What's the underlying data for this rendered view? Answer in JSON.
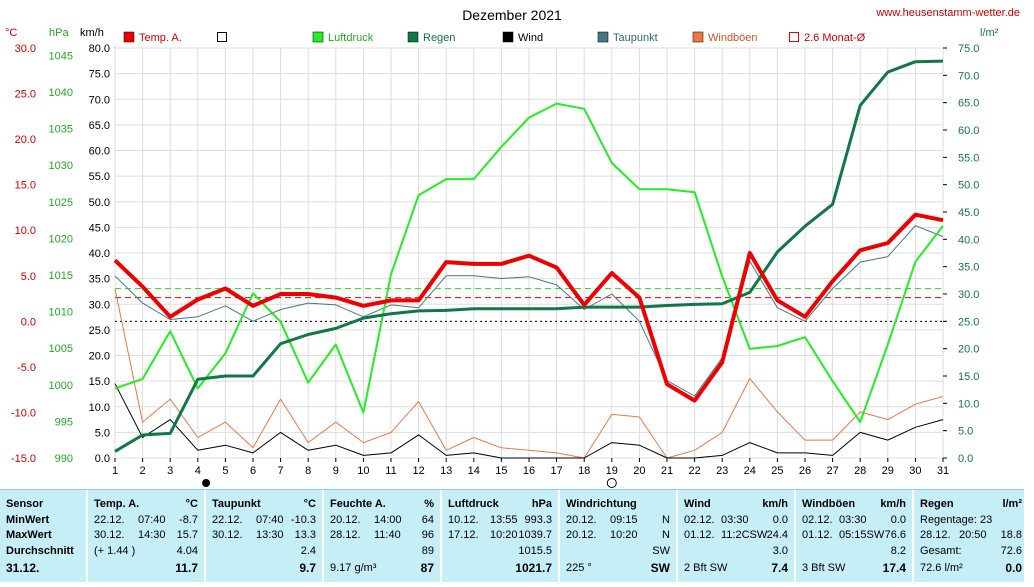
{
  "title": "Dezember 2021",
  "website": "www.heusenstamm-wetter.de",
  "axes": {
    "temp_unit": "°C",
    "pressure_unit": "hPa",
    "wind_unit": "km/h",
    "rain_unit": "l/m²",
    "temp_ticks": [
      "30.0",
      "25.0",
      "20.0",
      "15.0",
      "10.0",
      "5.0",
      "0.0",
      "-5.0",
      "-10.0",
      "-15.0"
    ],
    "pressure_ticks": [
      "1045",
      "1040",
      "1035",
      "1030",
      "1025",
      "1020",
      "1015",
      "1010",
      "1005",
      "1000",
      "995",
      "990"
    ],
    "wind_ticks": [
      "80.0",
      "75.0",
      "70.0",
      "65.0",
      "60.0",
      "55.0",
      "50.0",
      "45.0",
      "40.0",
      "35.0",
      "30.0",
      "25.0",
      "20.0",
      "15.0",
      "10.0",
      "5.0",
      "0.0"
    ],
    "rain_ticks": [
      "75.0",
      "70.0",
      "65.0",
      "60.0",
      "55.0",
      "50.0",
      "45.0",
      "40.0",
      "35.0",
      "30.0",
      "25.0",
      "20.0",
      "15.0",
      "10.0",
      "5.0",
      "0.0"
    ],
    "x_ticks": [
      "1",
      "2",
      "3",
      "4",
      "5",
      "6",
      "7",
      "8",
      "9",
      "10",
      "11",
      "12",
      "13",
      "14",
      "15",
      "16",
      "17",
      "18",
      "19",
      "20",
      "21",
      "22",
      "23",
      "24",
      "25",
      "26",
      "27",
      "28",
      "29",
      "30",
      "31"
    ]
  },
  "legend": [
    {
      "label": "Temp. A.",
      "color": "#ee0000",
      "style": "filled"
    },
    {
      "label": "",
      "color": "#ffffff",
      "style": "box"
    },
    {
      "label": "Luftdruck",
      "color": "#22ee22",
      "style": "filled"
    },
    {
      "label": "Regen",
      "color": "#117744",
      "style": "filled"
    },
    {
      "label": "Wind",
      "color": "#000000",
      "style": "filled"
    },
    {
      "label": "Taupunkt",
      "color": "#447788",
      "style": "filled"
    },
    {
      "label": "Windböen",
      "color": "#ee7744",
      "style": "filled"
    },
    {
      "label": "2.6 Monat-Ø",
      "color": "#ee0000",
      "style": "box"
    }
  ],
  "colors": {
    "temp": "#ee0000",
    "pressure": "#22ee22",
    "rain": "#117744",
    "wind": "#000000",
    "dew": "#447788",
    "gust": "#ee7744",
    "avg": "#ee0000",
    "grid": "#dddddd"
  },
  "chart_data": {
    "type": "line",
    "x": [
      1,
      2,
      3,
      4,
      5,
      6,
      7,
      8,
      9,
      10,
      11,
      12,
      13,
      14,
      15,
      16,
      17,
      18,
      19,
      20,
      21,
      22,
      23,
      24,
      25,
      26,
      27,
      28,
      29,
      30,
      31
    ],
    "xlim": [
      1,
      31
    ],
    "temp_ylim": [
      -15,
      30
    ],
    "pressure_ylim": [
      990,
      1046
    ],
    "wind_ylim": [
      0,
      80
    ],
    "rain_ylim": [
      0,
      75
    ],
    "series": [
      {
        "name": "Temp. A.",
        "axis": "temp",
        "values": [
          6.7,
          3.8,
          0.5,
          2.4,
          3.6,
          1.7,
          3.0,
          3.0,
          2.6,
          1.7,
          2.3,
          2.3,
          6.5,
          6.3,
          6.3,
          7.2,
          5.9,
          1.8,
          5.3,
          2.6,
          -6.9,
          -8.7,
          -4.5,
          7.5,
          2.3,
          0.5,
          4.4,
          7.8,
          8.6,
          11.7,
          11.1
        ]
      },
      {
        "name": "Luftdruck",
        "axis": "pressure",
        "values": [
          999.5,
          1000.8,
          1007.3,
          999.5,
          1004.3,
          1012.5,
          1008.6,
          1000.3,
          1005.5,
          996.2,
          1015.1,
          1025.9,
          1028.1,
          1028.1,
          1032.5,
          1036.5,
          1038.4,
          1037.7,
          1030.3,
          1026.7,
          1026.7,
          1026.3,
          1014.8,
          1004.9,
          1005.3,
          1006.5,
          1000.5,
          994.9,
          1005.5,
          1016.8,
          1021.7
        ]
      },
      {
        "name": "Regen",
        "axis": "rain",
        "values": [
          1.2,
          4.2,
          4.5,
          14.4,
          15.0,
          15.0,
          20.9,
          22.6,
          23.7,
          25.6,
          26.4,
          26.9,
          27.0,
          27.3,
          27.3,
          27.3,
          27.3,
          27.6,
          27.6,
          27.6,
          27.9,
          28.1,
          28.2,
          30.3,
          37.7,
          42.4,
          46.4,
          64.5,
          70.6,
          72.5,
          72.6
        ]
      },
      {
        "name": "Taupunkt",
        "axis": "temp",
        "values": [
          5.0,
          2.0,
          0.2,
          0.5,
          1.7,
          0.0,
          1.3,
          2.0,
          1.8,
          0.5,
          1.8,
          1.5,
          5.0,
          5.0,
          4.7,
          4.9,
          4.0,
          1.3,
          3.0,
          0.0,
          -6.5,
          -8.2,
          -4.0,
          6.6,
          1.5,
          0.0,
          3.6,
          6.5,
          7.1,
          10.5,
          9.3
        ]
      },
      {
        "name": "Wind",
        "axis": "wind",
        "values": [
          14.5,
          4.0,
          7.5,
          1.5,
          2.5,
          1.0,
          5.0,
          1.5,
          2.5,
          0.5,
          1.0,
          4.5,
          0.5,
          1.0,
          0.0,
          0.0,
          0.0,
          0.0,
          3.0,
          2.5,
          0.0,
          0.0,
          0.5,
          3.0,
          1.0,
          1.0,
          0.5,
          5.0,
          3.5,
          6.0,
          7.5
        ]
      },
      {
        "name": "Windböen",
        "axis": "wind",
        "values": [
          33.0,
          7.0,
          11.5,
          4.0,
          7.0,
          2.0,
          11.5,
          3.0,
          7.0,
          3.0,
          5.0,
          11.0,
          1.5,
          4.0,
          2.0,
          1.5,
          1.0,
          0.0,
          8.5,
          8.0,
          0.0,
          1.5,
          5.0,
          15.5,
          9.0,
          3.5,
          3.5,
          9.0,
          7.5,
          10.5,
          12.0
        ]
      }
    ],
    "reference_lines": [
      {
        "label": "2.6 Monat-Ø",
        "axis": "temp",
        "value": 2.6,
        "color": "#ee0000",
        "style": "dashed"
      },
      {
        "label": "",
        "axis": "temp",
        "value": 3.6,
        "color": "#22ee22",
        "style": "dashed"
      },
      {
        "label": "",
        "axis": "temp",
        "value": 0.0,
        "color": "#000000",
        "style": "dotted"
      }
    ],
    "markers": [
      {
        "x": 4.3,
        "type": "filled-circle"
      },
      {
        "x": 19.0,
        "type": "open-circle"
      }
    ]
  },
  "stats": {
    "sensor": {
      "header": "Sensor",
      "rows": [
        "MinWert",
        "MaxWert",
        "Durchschnitt",
        "31.12."
      ]
    },
    "temp": {
      "header": "Temp. A.",
      "unit": "°C",
      "min_date": "22.12.",
      "min_time": "07:40",
      "min": "-8.7",
      "max_date": "30.12.",
      "max_time": "14:30",
      "max": "15.7",
      "avg_note": "(+ 1.44 )",
      "avg": "4.04",
      "today": "11.7"
    },
    "dew": {
      "header": "Taupunkt",
      "unit": "°C",
      "min_date": "22.12.",
      "min_time": "07:40",
      "min": "-10.3",
      "max_date": "30.12.",
      "max_time": "13:30",
      "max": "13.3",
      "avg": "2.4",
      "today": "9.7"
    },
    "hum": {
      "header": "Feuchte A.",
      "unit": "%",
      "min_date": "20.12.",
      "min_time": "14:00",
      "min": "64",
      "max_date": "28.12.",
      "max_time": "11:40",
      "max": "96",
      "avg": "89",
      "today_note": "9.17 g/m³",
      "today": "87"
    },
    "press": {
      "header": "Luftdruck",
      "unit": "hPa",
      "min_date": "10.12.",
      "min_time": "13:55",
      "min": "993.3",
      "max_date": "17.12.",
      "max_time": "10:20",
      "max": "1039.7",
      "avg": "1015.5",
      "today": "1021.7"
    },
    "dir": {
      "header": "Windrichtung",
      "min_date": "20.12.",
      "min_time": "09:15",
      "min": "N",
      "max_date": "20.12.",
      "max_time": "10:20",
      "max": "N",
      "avg": "SW",
      "today_note": "225 °",
      "today": "SW"
    },
    "wind": {
      "header": "Wind",
      "unit": "km/h",
      "min_date": "02.12.",
      "min_time": "03:30",
      "min": "0.0",
      "max_date": "01.12.",
      "max_time": "11:2CSW",
      "max": "24.4",
      "avg": "3.0",
      "today_note": "2 Bft SW",
      "today": "7.4"
    },
    "gust": {
      "header": "Windböen",
      "unit": "km/h",
      "min_date": "02.12.",
      "min_time": "03:30",
      "min": "0.0",
      "max_date": "01.12.",
      "max_time": "05:15SW",
      "max": "76.6",
      "avg": "8.2",
      "today_note": "3 Bft SW",
      "today": "17.4"
    },
    "rain": {
      "header": "Regen",
      "unit": "l/m²",
      "r1_label": "Regentage:",
      "r1_val": "23",
      "r2_date": "28.12.",
      "r2_time": "20:50",
      "r2_val": "18.8",
      "r3_label": "Gesamt:",
      "r3_val": "72.6",
      "today_note": "72.6 l/m²",
      "today": "0.0"
    }
  }
}
